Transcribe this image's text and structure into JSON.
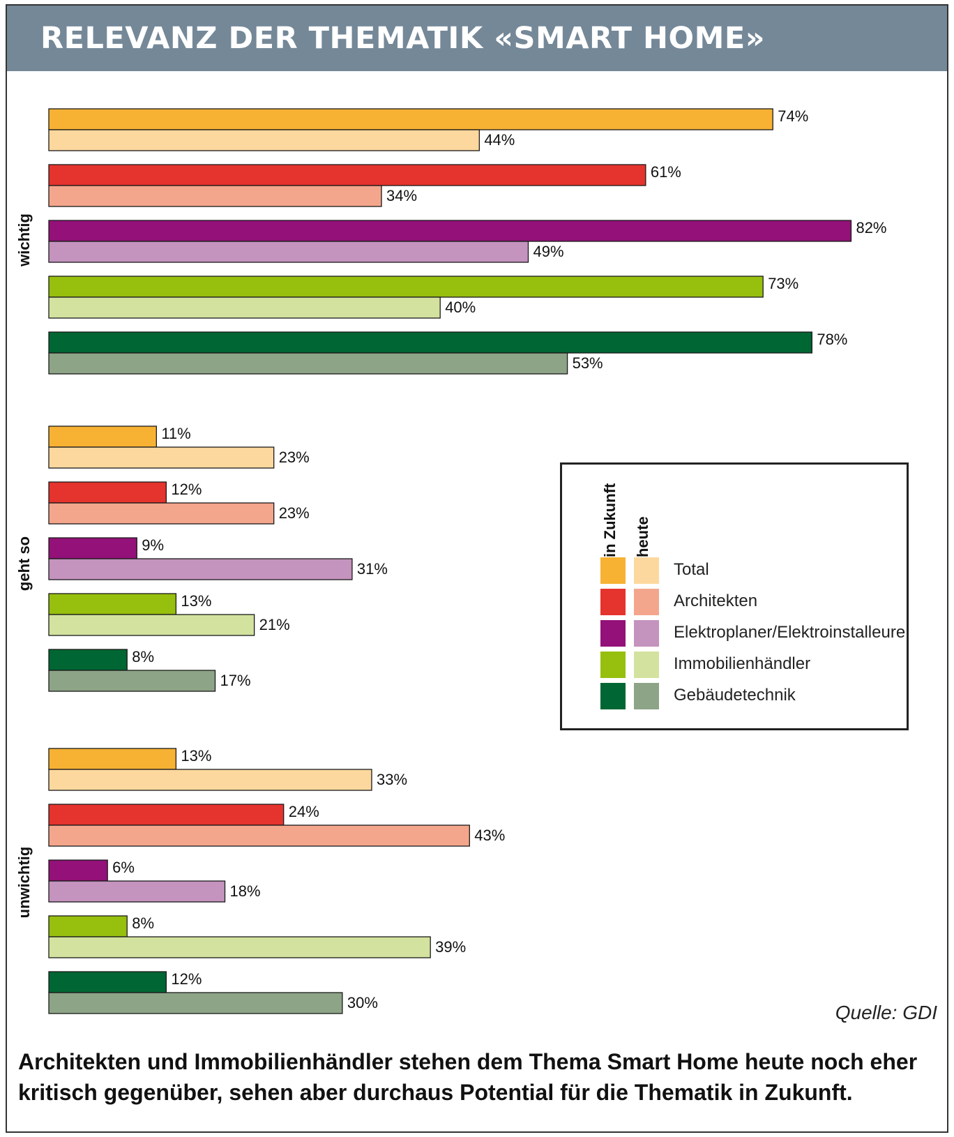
{
  "header": {
    "title": "RELEVANZ DER THEMATIK «SMART HOME»"
  },
  "chart_data": {
    "type": "bar",
    "orientation": "horizontal",
    "title": "RELEVANZ DER THEMATIK «SMART HOME»",
    "value_suffix": "%",
    "xlim": [
      0,
      85
    ],
    "grid": false,
    "legend_placement": "right",
    "legend_columns": [
      "in Zukunft",
      "heute"
    ],
    "categories": [
      "wichtig",
      "geht so",
      "unwichtig"
    ],
    "series": [
      {
        "name": "Total",
        "color_future": "#F7B233",
        "color_today": "#FDD89E",
        "in_zukunft": [
          74,
          11,
          13
        ],
        "heute": [
          44,
          23,
          33
        ]
      },
      {
        "name": "Architekten",
        "color_future": "#E5332D",
        "color_today": "#F4A68C",
        "in_zukunft": [
          61,
          12,
          24
        ],
        "heute": [
          34,
          23,
          43
        ]
      },
      {
        "name": "Elektroplaner/Elektroinstalleure",
        "color_future": "#931178",
        "color_today": "#C493BE",
        "in_zukunft": [
          82,
          9,
          6
        ],
        "heute": [
          49,
          31,
          18
        ]
      },
      {
        "name": "Immobilienhändler",
        "color_future": "#97BF0D",
        "color_today": "#D3E29E",
        "in_zukunft": [
          73,
          13,
          8
        ],
        "heute": [
          40,
          21,
          39
        ]
      },
      {
        "name": "Gebäudetechnik",
        "color_future": "#006633",
        "color_today": "#8DA487",
        "in_zukunft": [
          78,
          8,
          12
        ],
        "heute": [
          53,
          17,
          30
        ]
      }
    ]
  },
  "source": "Quelle: GDI",
  "caption": "Architekten und Immobilienhändler stehen dem Thema Smart Home heute noch eher kritisch gegenüber, sehen aber durchaus Potential für die Thematik in Zukunft."
}
